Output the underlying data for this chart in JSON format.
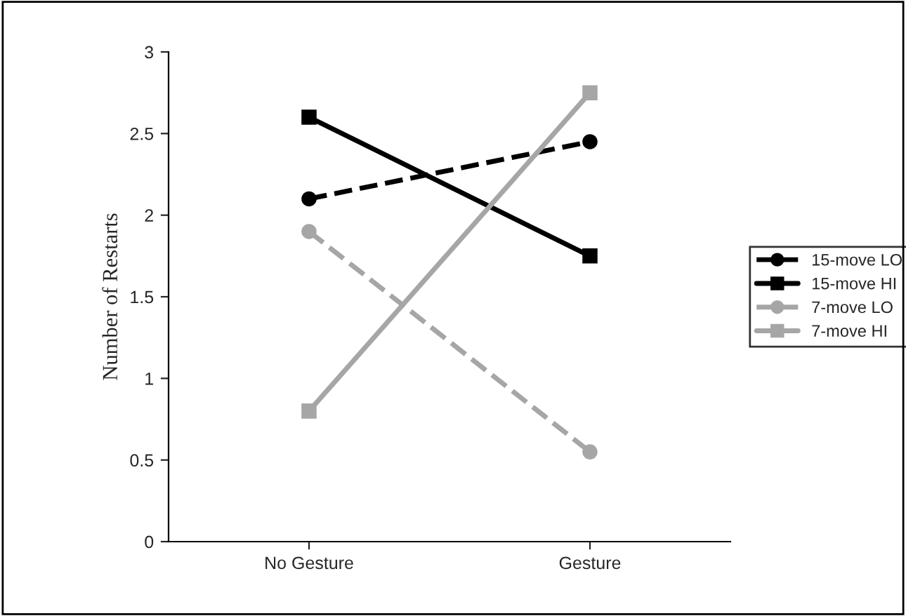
{
  "chart_data": {
    "type": "line",
    "ylabel": "Number of Restarts",
    "categories": [
      "No Gesture",
      "Gesture"
    ],
    "series": [
      {
        "name": "15-move LO",
        "color": "#000000",
        "marker": "circle",
        "line_style": "dashed",
        "values": [
          2.1,
          2.45
        ]
      },
      {
        "name": "15-move HI",
        "color": "#000000",
        "marker": "square",
        "line_style": "solid",
        "values": [
          2.6,
          1.75
        ]
      },
      {
        "name": "7-move LO",
        "color": "#a6a6a6",
        "marker": "circle",
        "line_style": "dashed",
        "values": [
          1.9,
          0.55
        ]
      },
      {
        "name": "7-move HI",
        "color": "#a6a6a6",
        "marker": "square",
        "line_style": "solid",
        "values": [
          0.8,
          2.75
        ]
      }
    ],
    "ylim": [
      0,
      3
    ],
    "yticks": [
      0,
      0.5,
      1,
      1.5,
      2,
      2.5,
      3
    ],
    "grid": false,
    "legend": "right"
  }
}
